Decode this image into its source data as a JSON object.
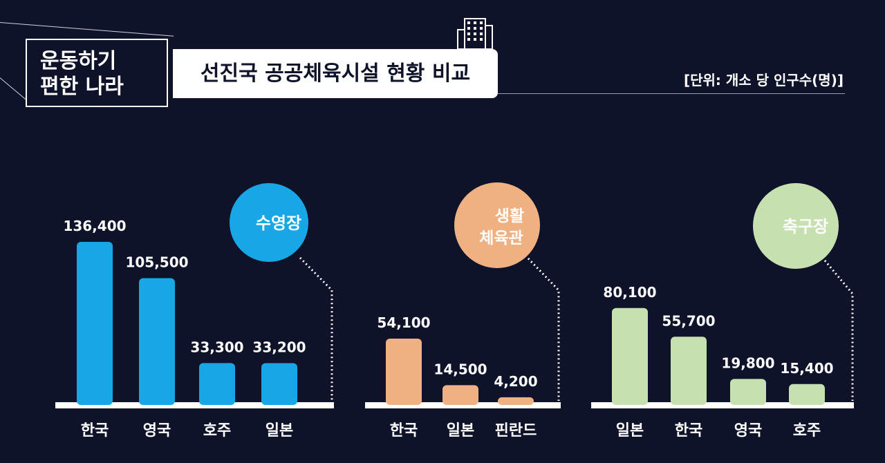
{
  "header": {
    "brand_line1": "운동하기",
    "brand_line2": "편한 나라",
    "title": "선진국 공공체육시설 현황 비교",
    "unit": "[단위: 개소 당 인구수(명)]"
  },
  "colors": {
    "background": "#0e1329",
    "pool": "#17a6e6",
    "gym": "#f0b182",
    "soccer": "#c7e0b0"
  },
  "chart_data": [
    {
      "type": "bar",
      "label": "수영장",
      "categories": [
        "한국",
        "영국",
        "호주",
        "일본"
      ],
      "values": [
        136400,
        105500,
        33300,
        33200
      ],
      "value_labels": [
        "136,400",
        "105,500",
        "33,300",
        "33,200"
      ],
      "color": "#17a6e6"
    },
    {
      "type": "bar",
      "label": "생활 체육관",
      "label_line1": "생활",
      "label_line2": "체육관",
      "categories": [
        "한국",
        "일본",
        "핀란드"
      ],
      "values": [
        54100,
        14500,
        4200
      ],
      "value_labels": [
        "54,100",
        "14,500",
        "4,200"
      ],
      "color": "#f0b182"
    },
    {
      "type": "bar",
      "label": "축구장",
      "categories": [
        "일본",
        "한국",
        "영국",
        "호주"
      ],
      "values": [
        80100,
        55700,
        19800,
        15400
      ],
      "value_labels": [
        "80,100",
        "55,700",
        "19,800",
        "15,400"
      ],
      "color": "#c7e0b0"
    }
  ]
}
